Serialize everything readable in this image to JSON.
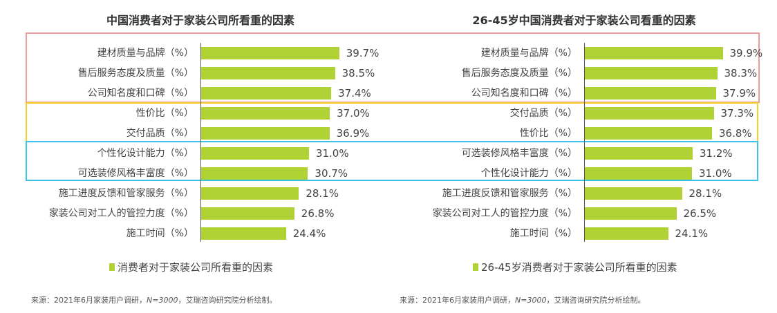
{
  "colors": {
    "bar": "#b1d234",
    "box_top": "#ef9a9a",
    "box_mid": "#f8cf2a",
    "box_low": "#3cc3ea"
  },
  "source_prefix": "来源：2021年6月家装用户调研，",
  "source_n": "N=3000",
  "source_suffix": "，艾瑞咨询研究院分析绘制。",
  "chart_data": [
    {
      "type": "bar",
      "orientation": "horizontal",
      "title": "中国消费者对于家装公司所看重的因素",
      "categories": [
        "建材质量与品牌（%）",
        "售后服务态度及质量（%）",
        "公司知名度和口碑（%）",
        "性价比（%）",
        "交付品质（%）",
        "个性化设计能力（%）",
        "可选装修风格丰富度（%）",
        "施工进度反馈和管家服务（%）",
        "家装公司对工人的管控力度（%）",
        "施工时间（%）"
      ],
      "values": [
        39.7,
        38.5,
        37.4,
        37.0,
        36.9,
        31.0,
        30.7,
        28.1,
        26.8,
        24.4
      ],
      "value_labels": [
        "39.7%",
        "38.5%",
        "37.4%",
        "37.0%",
        "36.9%",
        "31.0%",
        "30.7%",
        "28.1%",
        "26.8%",
        "24.4%"
      ],
      "series_name": "消费者对于家装公司所看重的因素",
      "legend": "bottom"
    },
    {
      "type": "bar",
      "orientation": "horizontal",
      "title": "26-45岁中国消费者对于家装公司看重的因素",
      "categories": [
        "建材质量与品牌（%）",
        "售后服务态度及质量（%）",
        "公司知名度和口碑（%）",
        "交付品质（%）",
        "性价比（%）",
        "可选装修风格丰富度（%）",
        "个性化设计能力（%）",
        "施工进度反馈和管家服务（%）",
        "家装公司对工人的管控力度（%）",
        "施工时间（%）"
      ],
      "values": [
        39.9,
        38.3,
        37.9,
        37.3,
        36.8,
        31.2,
        31.0,
        28.1,
        26.5,
        24.1
      ],
      "value_labels": [
        "39.9%",
        "38.3%",
        "37.9%",
        "37.3%",
        "36.8%",
        "31.2%",
        "31.0%",
        "28.1%",
        "26.5%",
        "24.1%"
      ],
      "series_name": "26-45岁消费者对于家装公司所看重的因素",
      "legend": "bottom"
    }
  ]
}
